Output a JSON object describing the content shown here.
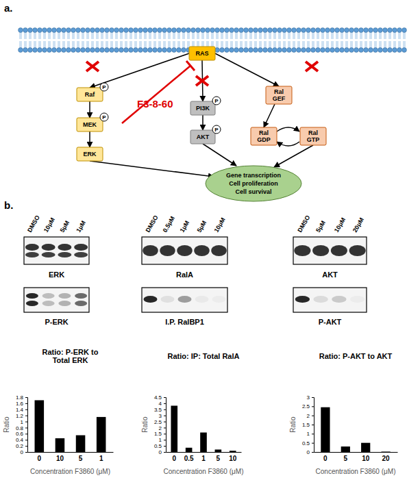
{
  "panel_labels": [
    "a.",
    "b."
  ],
  "diagram": {
    "nodes": [
      {
        "label": "RAS"
      },
      {
        "label": "Raf"
      },
      {
        "label": "MEK"
      },
      {
        "label": "ERK"
      },
      {
        "label": "PI3K"
      },
      {
        "label": "AKT"
      },
      {
        "label": "Ral\nGEF"
      },
      {
        "label": "Ral\nGDP"
      },
      {
        "label": "Ral\nGTP"
      }
    ],
    "phospho_label": "P",
    "inhibitor": "F3-8-60",
    "outcome": [
      "Gene transcription",
      "Cell proliferation",
      "Cell survival"
    ]
  },
  "blots": [
    {
      "lanes": [
        "DMSO",
        "10μM",
        "5μM",
        "1μM"
      ],
      "top_label": "ERK",
      "bottom_label": "P-ERK"
    },
    {
      "lanes": [
        "DMSO",
        "0.5μM",
        "1μM",
        "5μM",
        "10μM"
      ],
      "top_label": "RalA",
      "bottom_label": "I.P. RalBP1"
    },
    {
      "lanes": [
        "DMSO",
        "5μM",
        "10μM",
        "20μM"
      ],
      "top_label": "AKT",
      "bottom_label": "P-AKT"
    }
  ],
  "chart_data": [
    {
      "type": "bar",
      "title": "Ratio: P-ERK to\nTotal ERK",
      "x_label": "Concentration F3860 (μM)",
      "y_label": "Ratio",
      "categories": [
        "0",
        "10",
        "5",
        "1"
      ],
      "values": [
        1.7,
        0.45,
        0.55,
        1.15
      ],
      "color": "#000000",
      "ylim": [
        0,
        1.8
      ],
      "yticks": [
        0,
        0.2,
        0.4,
        0.6,
        0.8,
        1,
        1.2,
        1.4,
        1.6,
        1.8
      ]
    },
    {
      "type": "bar",
      "title": "Ratio: IP: Total RalA",
      "x_label": "Concentration F3860 (μM)",
      "y_label": "Ratio",
      "categories": [
        "0",
        "0.5",
        "1",
        "5",
        "10"
      ],
      "values": [
        3.8,
        0.35,
        1.6,
        0.2,
        0.1
      ],
      "color": "#000000",
      "ylim": [
        0,
        4.5
      ],
      "yticks": [
        0,
        0.5,
        1,
        1.5,
        2,
        2.5,
        3,
        3.5,
        4,
        4.5
      ]
    },
    {
      "type": "bar",
      "title": "Ratio: P-AKT to AKT",
      "x_label": "Concentration F3860 (μM)",
      "y_label": "Ratio",
      "categories": [
        "0",
        "5",
        "10",
        "20"
      ],
      "values": [
        2.45,
        0.3,
        0.5,
        0.02
      ],
      "color": "#000000",
      "ylim": [
        0,
        3
      ],
      "yticks": [
        0,
        0.5,
        1,
        1.5,
        2,
        2.5,
        3
      ]
    }
  ]
}
